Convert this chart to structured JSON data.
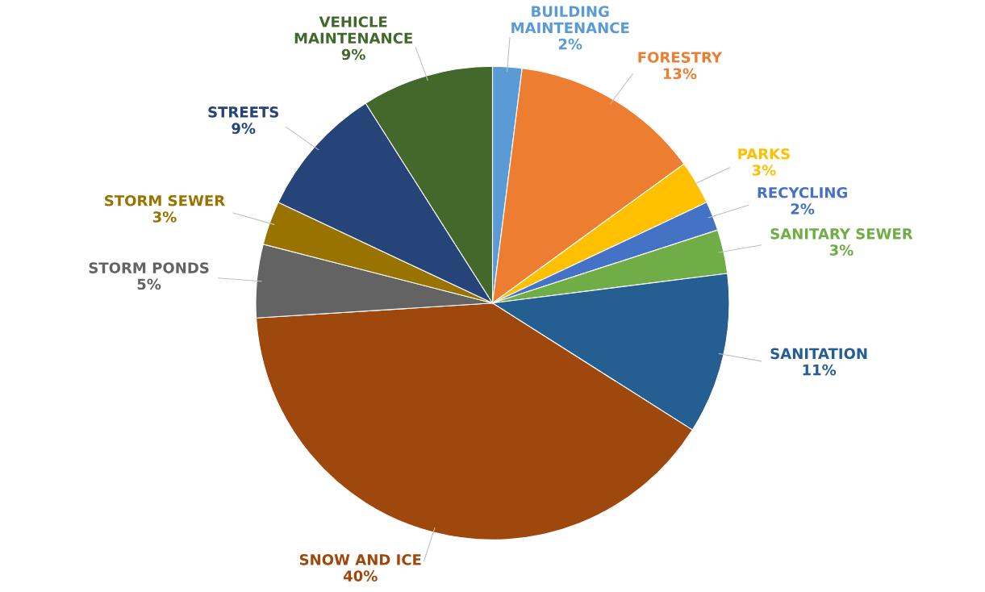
{
  "chart_data": {
    "type": "pie",
    "categories": [
      "BUILDING MAINTENANCE",
      "FORESTRY",
      "PARKS",
      "RECYCLING",
      "SANITARY SEWER",
      "SANITATION",
      "SNOW AND ICE",
      "STORM PONDS",
      "STORM SEWER",
      "STREETS",
      "VEHICLE MAINTENANCE"
    ],
    "values": [
      2,
      13,
      3,
      2,
      3,
      11,
      40,
      5,
      3,
      9,
      9
    ],
    "value_labels": [
      "2%",
      "13%",
      "3%",
      "2%",
      "3%",
      "11%",
      "40%",
      "5%",
      "3%",
      "9%",
      "9%"
    ],
    "colors": [
      "#5b9bd5",
      "#ed7d31",
      "#ffc000",
      "#4472c4",
      "#70ad47",
      "#255e91",
      "#9e480e",
      "#636363",
      "#997300",
      "#264478",
      "#43682b"
    ]
  }
}
